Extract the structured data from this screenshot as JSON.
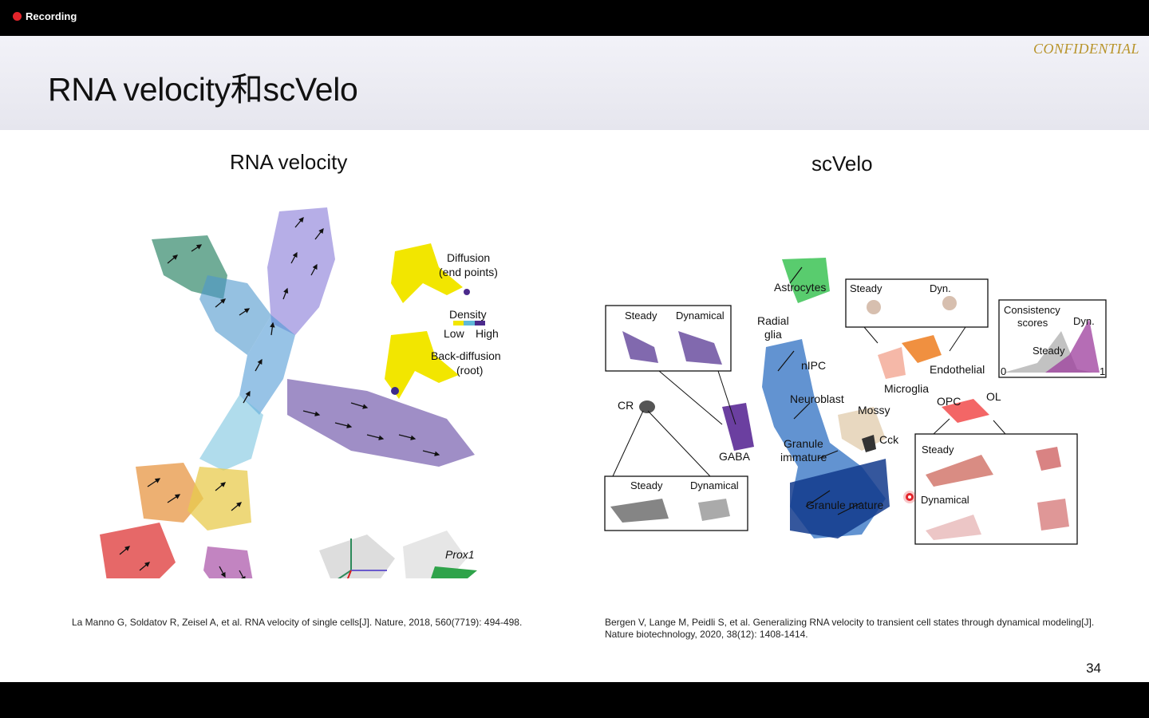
{
  "recording": {
    "label": "Recording",
    "indicator_color": "#e3242b"
  },
  "slide": {
    "title": "RNA velocity和scVelo",
    "watermark": "CONFIDENTIAL",
    "page_number": "34",
    "accent_color": "#b8942a"
  },
  "left_panel": {
    "heading": "RNA velocity",
    "labels": {
      "diffusion": "Diffusion",
      "end_points": "(end points)",
      "density": "Density",
      "low": "Low",
      "high": "High",
      "back_diffusion": "Back-diffusion",
      "root": "(root)",
      "prox1": "Prox1"
    },
    "reference": "La Manno G, Soldatov R, Zeisel A, et al. RNA velocity of single cells[J]. Nature, 2018, 560(7719): 494-498."
  },
  "right_panel": {
    "heading": "scVelo",
    "labels": {
      "astrocytes": "Astrocytes",
      "radial": "Radial",
      "glia": "glia",
      "nipc": "nIPC",
      "neuroblast": "Neuroblast",
      "granule_immature_1": "Granule",
      "granule_immature_2": "immature",
      "granule_mature": "Granule mature",
      "mossy": "Mossy",
      "cck": "Cck",
      "microglia": "Microglia",
      "endothelial": "Endothelial",
      "opc": "OPC",
      "ol": "OL",
      "cr": "CR",
      "gaba": "GABA",
      "steady": "Steady",
      "dynamical": "Dynamical",
      "dyn": "Dyn.",
      "consistency_1": "Consistency",
      "consistency_2": "scores",
      "axis_min": "0",
      "axis_max": "1"
    },
    "reference_line1": "Bergen V, Lange M, Peidli S, et al. Generalizing RNA velocity to transient cell states through dynamical modeling[J].",
    "reference_line2": "Nature biotechnology, 2020, 38(12): 1408-1414."
  }
}
